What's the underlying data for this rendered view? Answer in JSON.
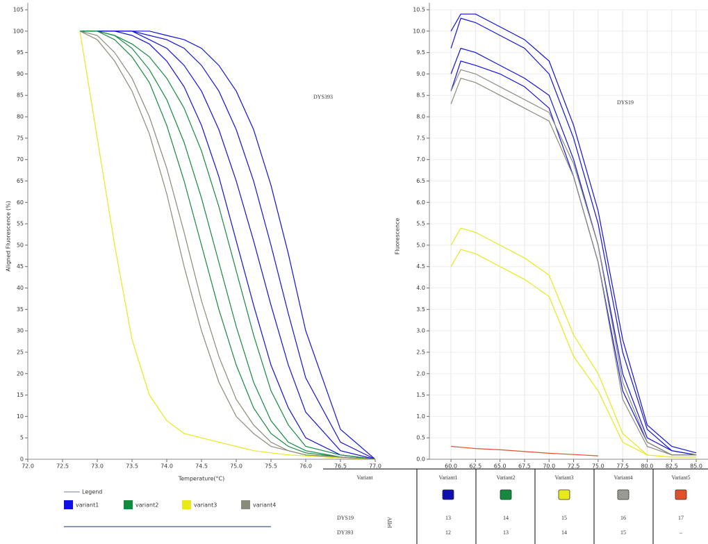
{
  "chart_data": [
    {
      "type": "line",
      "ylabel": "Aligned Fluorescence (%)",
      "xlabel": "Temperature(°C)",
      "annotation": "DYS393",
      "legend_title": "Legend",
      "xlim": [
        72.0,
        77.0
      ],
      "ylim": [
        0,
        105
      ],
      "grid": false,
      "xticks": [
        {
          "value": 72.0,
          "label": "72.0"
        },
        72.5,
        {
          "value": 73.0,
          "label": "73.0"
        },
        73.5,
        {
          "value": 74.0,
          "label": "74.0"
        },
        74.5,
        {
          "value": 75.0,
          "label": "75.0"
        },
        75.5,
        {
          "value": 76.0,
          "label": "76.0"
        },
        76.5,
        {
          "value": 77.0,
          "label": "77.0"
        }
      ],
      "yticks": [
        0,
        5,
        10,
        15,
        20,
        25,
        30,
        35,
        40,
        45,
        50,
        55,
        60,
        65,
        70,
        75,
        80,
        85,
        90,
        95,
        100,
        105
      ],
      "x": [
        72.75,
        73.0,
        73.25,
        73.5,
        73.75,
        74.0,
        74.25,
        74.5,
        74.75,
        75.0,
        75.25,
        75.5,
        75.75,
        76.0,
        76.5,
        77.0
      ],
      "series": [
        {
          "name": "variant1",
          "color": "#1010e0",
          "curves": [
            [
              100,
              100,
              100,
              99,
              97,
              93,
              87,
              78,
              66,
              51,
              36,
              22,
              12,
              5,
              1,
              0
            ],
            [
              100,
              100,
              100,
              100,
              98,
              96,
              92,
              86,
              77,
              65,
              51,
              36,
              22,
              11,
              2,
              0
            ],
            [
              100,
              100,
              100,
              100,
              99,
              98,
              96,
              92,
              86,
              77,
              65,
              50,
              34,
              19,
              4,
              0
            ],
            [
              100,
              100,
              100,
              100,
              100,
              99,
              98,
              96,
              92,
              86,
              77,
              64,
              48,
              30,
              7,
              0
            ]
          ]
        },
        {
          "name": "variant2",
          "color": "#138a3e",
          "curves": [
            [
              100,
              100,
              98,
              94,
              88,
              78,
              65,
              50,
              35,
              22,
              12,
              6,
              3,
              1.5,
              0.5,
              0
            ],
            [
              100,
              100,
              99,
              96,
              91,
              84,
              74,
              61,
              46,
              31,
              18,
              9,
              4,
              2,
              0.5,
              0
            ],
            [
              100,
              100,
              99,
              97,
              94,
              89,
              82,
              72,
              59,
              44,
              29,
              16,
              8,
              3,
              1,
              0
            ]
          ]
        },
        {
          "name": "variant3",
          "color": "#e8e81a",
          "curves": [
            [
              100,
              75,
              50,
              28,
              15,
              9,
              6,
              5,
              4,
              3,
              2,
              1.5,
              1,
              0.8,
              0.3,
              0
            ]
          ]
        },
        {
          "name": "variant4",
          "color": "#8a8a7a",
          "curves": [
            [
              100,
              98,
              93,
              86,
              76,
              62,
              45,
              30,
              18,
              10,
              6,
              3,
              2,
              1,
              0.5,
              0
            ],
            [
              100,
              99,
              95,
              89,
              80,
              68,
              53,
              37,
              24,
              14,
              8,
              4,
              2,
              1,
              0.5,
              0
            ]
          ]
        }
      ]
    },
    {
      "type": "line",
      "ylabel": "Fluorescence",
      "annotation": "DYS19",
      "xlim": [
        57.8,
        86.2
      ],
      "ylim": [
        0,
        10.5
      ],
      "grid": true,
      "xticks": [
        {
          "value": 60.0,
          "label": "60.0"
        },
        62.5,
        {
          "value": 65.0,
          "label": "65.0"
        },
        67.5,
        {
          "value": 70.0,
          "label": "70.0"
        },
        72.5,
        {
          "value": 75.0,
          "label": "75.0"
        },
        77.5,
        {
          "value": 80.0,
          "label": "80.0"
        },
        82.5,
        {
          "value": 85.0,
          "label": "85.0"
        }
      ],
      "yticks": [
        {
          "value": 0,
          "label": "0.0"
        },
        0.5,
        {
          "value": 1,
          "label": "1.0"
        },
        1.5,
        {
          "value": 2,
          "label": "2.0"
        },
        2.5,
        {
          "value": 3,
          "label": "3.0"
        },
        3.5,
        {
          "value": 4,
          "label": "4.0"
        },
        4.5,
        {
          "value": 5,
          "label": "5.0"
        },
        5.5,
        {
          "value": 6,
          "label": "6.0"
        },
        6.5,
        {
          "value": 7,
          "label": "7.0"
        },
        7.5,
        {
          "value": 8,
          "label": "8.0"
        },
        8.5,
        {
          "value": 9,
          "label": "9.0"
        },
        9.5,
        {
          "value": 10,
          "label": "10.0"
        },
        10.5
      ],
      "x": [
        60,
        61,
        62.5,
        65,
        67.5,
        70,
        72.5,
        75,
        77.5,
        80,
        82.5,
        85
      ],
      "series": [
        {
          "color": "#1010e0",
          "curves": [
            [
              9.6,
              10.3,
              10.2,
              9.9,
              9.6,
              9.0,
              7.5,
              5.5,
              2.5,
              0.7,
              0.2,
              0.1
            ],
            [
              9.0,
              9.6,
              9.5,
              9.2,
              8.9,
              8.5,
              7.0,
              5.0,
              2.0,
              0.5,
              0.2,
              0.1
            ],
            [
              8.6,
              9.3,
              9.2,
              9.0,
              8.7,
              8.2,
              6.6,
              4.6,
              1.6,
              0.4,
              0.1,
              0.1
            ],
            [
              10.0,
              10.4,
              10.4,
              10.1,
              9.8,
              9.3,
              7.8,
              5.8,
              2.8,
              0.8,
              0.3,
              0.15
            ]
          ]
        },
        {
          "color": "#8a8a7a",
          "curves": [
            [
              8.3,
              8.9,
              8.8,
              8.5,
              8.2,
              7.9,
              6.6,
              4.6,
              1.4,
              0.3,
              0.1,
              0.1
            ],
            [
              8.6,
              9.1,
              9.0,
              8.7,
              8.4,
              8.1,
              6.9,
              5.0,
              1.8,
              0.4,
              0.1,
              0.1
            ]
          ]
        },
        {
          "color": "#e8e81a",
          "curves": [
            [
              5.0,
              5.4,
              5.3,
              5.0,
              4.7,
              4.3,
              2.9,
              2.0,
              0.6,
              0.1,
              0.05,
              0.05
            ],
            [
              4.5,
              4.9,
              4.8,
              4.5,
              4.2,
              3.8,
              2.4,
              1.6,
              0.4,
              0.1,
              0.05,
              0.05
            ]
          ]
        },
        {
          "color": "#e0502a",
          "curves": [
            [
              0.3,
              0.28,
              0.25,
              0.22,
              0.18,
              0.14,
              0.11,
              0.08,
              null,
              null,
              null,
              null
            ]
          ]
        }
      ]
    }
  ],
  "table": {
    "header": [
      "Variant",
      "Variant1",
      "Variant2",
      "Variant3",
      "Variant4",
      "Variant5"
    ],
    "colors": [
      "#1010b0",
      "#138a3e",
      "#e8e81a",
      "#9a9a92",
      "#e0502a"
    ],
    "side_label": "Allel",
    "rows": [
      [
        "DYS19",
        13,
        14,
        15,
        16,
        17
      ],
      [
        "DY393",
        12,
        13,
        14,
        15,
        "–"
      ]
    ]
  }
}
